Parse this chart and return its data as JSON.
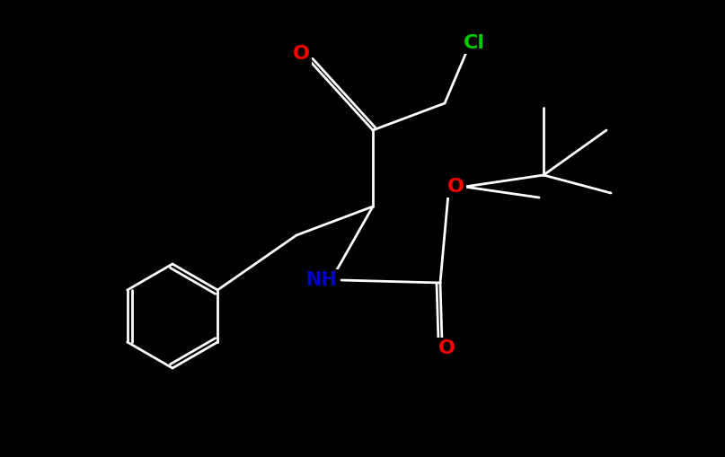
{
  "background_color": "#000000",
  "bond_color": "#ffffff",
  "atom_colors": {
    "O": "#ff0000",
    "N": "#0000cc",
    "Cl": "#00cc00",
    "C": "#ffffff"
  },
  "line_width": 2.0,
  "font_size": 14
}
